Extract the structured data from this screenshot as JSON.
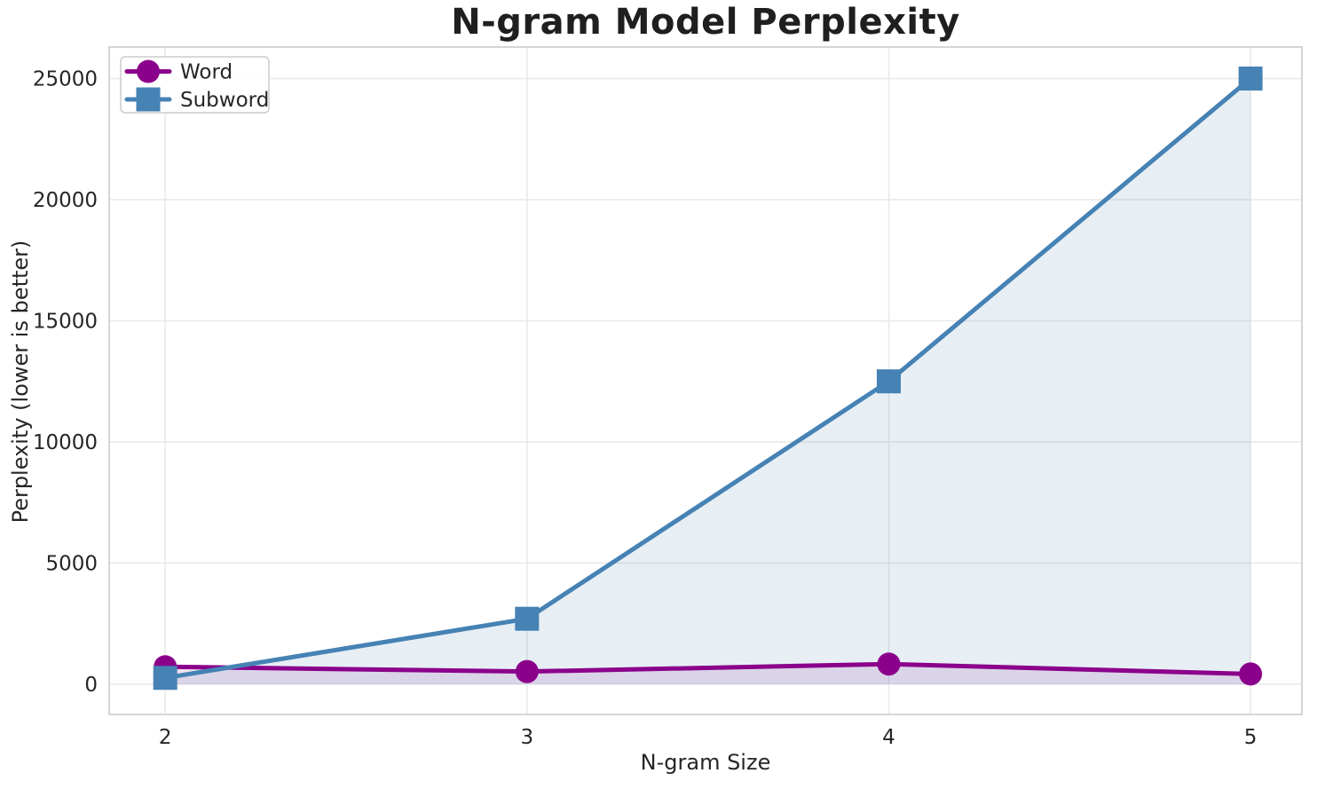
{
  "chart_data": {
    "type": "line",
    "title": "N-gram Model Perplexity",
    "xlabel": "N-gram Size",
    "ylabel": "Perplexity (lower is better)",
    "x": [
      2,
      3,
      4,
      5
    ],
    "xticks": [
      "2",
      "3",
      "4",
      "5"
    ],
    "yticks": [
      0,
      5000,
      10000,
      15000,
      20000,
      25000
    ],
    "xlim": [
      1.845,
      5.142
    ],
    "ylim": [
      -1250,
      26300
    ],
    "grid": true,
    "fill_to_zero": true,
    "legend_position": "upper left",
    "series": [
      {
        "name": "Word",
        "marker": "circle",
        "color": "#8B008B",
        "fill": "rgba(139,0,139,0.12)",
        "values": [
          720,
          520,
          830,
          420
        ]
      },
      {
        "name": "Subword",
        "marker": "square",
        "color": "#4682B4",
        "fill": "rgba(70,130,180,0.13)",
        "values": [
          260,
          2700,
          12500,
          25000
        ]
      }
    ],
    "colors": {
      "background": "#FFFFFF",
      "grid": "#E8E8E8",
      "spine": "#D5D5D5",
      "tick_label": "#262626",
      "title": "#1F1F1F",
      "legend_border": "#CCCCCC",
      "legend_fill": "rgba(255,255,255,0.9)"
    }
  }
}
